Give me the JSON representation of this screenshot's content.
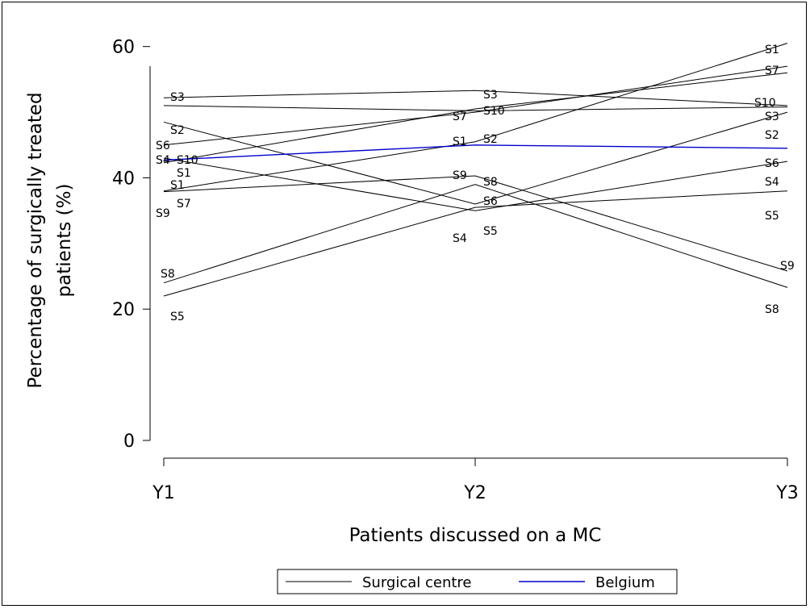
{
  "chart_data": {
    "type": "line",
    "xlabel": "Patients discussed on a MC",
    "ylabel_lines": [
      "Percentage of surgically treated",
      "patients (%)"
    ],
    "categories": [
      "Y1",
      "Y2",
      "Y3"
    ],
    "ylim": [
      0,
      65
    ],
    "yticks": [
      0,
      20,
      40,
      60
    ],
    "grid": false,
    "legend": {
      "position": "bottom",
      "entries": [
        {
          "label": "Surgical centre",
          "color": "#000000"
        },
        {
          "label": "Belgium",
          "color": "#0000cc"
        }
      ]
    },
    "series": [
      {
        "name": "S1",
        "group": "Surgical centre",
        "color": "#000000",
        "values": [
          38.0,
          45.5,
          60.5
        ]
      },
      {
        "name": "S2",
        "group": "Surgical centre",
        "color": "#000000",
        "values": [
          48.5,
          36.0,
          50.0
        ]
      },
      {
        "name": "S3",
        "group": "Surgical centre",
        "color": "#000000",
        "values": [
          52.2,
          53.3,
          51.0
        ]
      },
      {
        "name": "S4",
        "group": "Surgical centre",
        "color": "#000000",
        "values": [
          43.0,
          35.0,
          42.5
        ]
      },
      {
        "name": "S5",
        "group": "Surgical centre",
        "color": "#000000",
        "values": [
          22.0,
          35.5,
          38.0
        ]
      },
      {
        "name": "S6",
        "group": "Surgical centre",
        "color": "#000000",
        "values": [
          45.0,
          50.0,
          57.0
        ]
      },
      {
        "name": "S7",
        "group": "Surgical centre",
        "color": "#000000",
        "values": [
          37.9,
          40.3,
          25.8
        ]
      },
      {
        "name": "S8",
        "group": "Surgical centre",
        "color": "#000000",
        "values": [
          24.0,
          39.0,
          23.3
        ]
      },
      {
        "name": "S9",
        "group": "Surgical centre",
        "color": "#000000",
        "values": [
          51.0,
          50.2,
          50.8
        ]
      },
      {
        "name": "S10",
        "group": "Surgical centre",
        "color": "#000000",
        "values": [
          42.3,
          50.5,
          56.0
        ]
      },
      {
        "name": "Belgium",
        "group": "Belgium",
        "color": "#0000cc",
        "values": [
          42.7,
          45.0,
          44.5
        ]
      }
    ],
    "point_labels": {
      "Y1": [
        "S3",
        "S2",
        "S6",
        "S4",
        "S10",
        "S1",
        "S1",
        "S7",
        "S9",
        "S8",
        "S5"
      ],
      "Y2": [
        "S3",
        "S7",
        "S10",
        "S1",
        "S2",
        "S9",
        "S8",
        "S6",
        "S4",
        "S5"
      ],
      "Y3": [
        "S1",
        "S7",
        "S10",
        "S3",
        "S2",
        "S6",
        "S4",
        "S5",
        "S9",
        "S8"
      ]
    }
  }
}
